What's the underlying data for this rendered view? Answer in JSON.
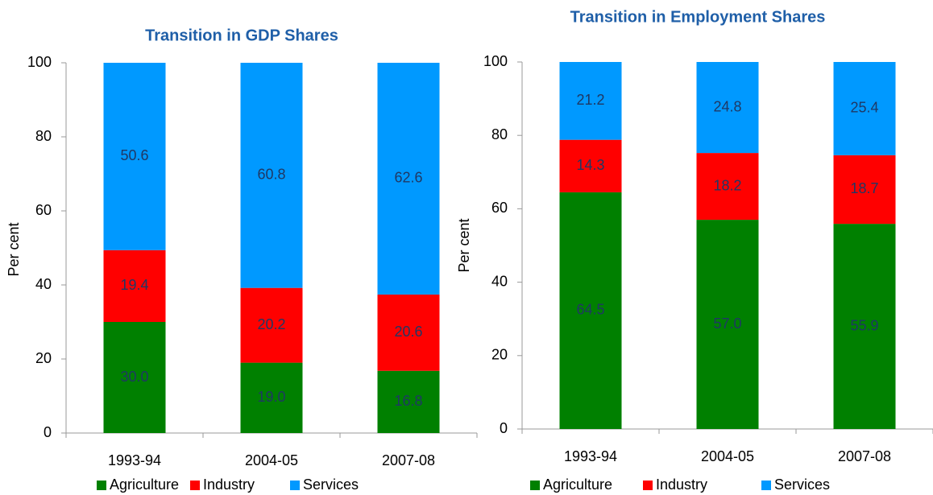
{
  "chart_data": [
    {
      "type": "stacked_bar",
      "title": "Transition in GDP Shares",
      "y_label": "Per cent",
      "categories": [
        "1993-94",
        "2004-05",
        "2007-08"
      ],
      "series": [
        {
          "name": "Agriculture",
          "color": "#008000",
          "values": [
            30.0,
            19.0,
            16.8
          ],
          "value_labels": [
            "30.0",
            "19.0",
            "16.8"
          ]
        },
        {
          "name": "Industry",
          "color": "#ff0000",
          "values": [
            19.4,
            20.2,
            20.6
          ],
          "value_labels": [
            "19.4",
            "20.2",
            "20.6"
          ]
        },
        {
          "name": "Services",
          "color": "#0099ff",
          "values": [
            50.6,
            60.8,
            62.6
          ],
          "value_labels": [
            "50.6",
            "60.8",
            "62.6"
          ]
        }
      ],
      "ylim": [
        0,
        100
      ],
      "yticks": [
        0,
        20,
        40,
        60,
        80,
        100
      ],
      "grid": false,
      "legend": "bottom"
    },
    {
      "type": "stacked_bar",
      "title": "Transition in Employment Shares",
      "y_label": "Per cent",
      "categories": [
        "1993-94",
        "2004-05",
        "2007-08"
      ],
      "series": [
        {
          "name": "Agriculture",
          "color": "#008000",
          "values": [
            64.5,
            57.0,
            55.9
          ],
          "value_labels": [
            "64.5",
            "57.0",
            "55.9"
          ]
        },
        {
          "name": "Industry",
          "color": "#ff0000",
          "values": [
            14.3,
            18.2,
            18.7
          ],
          "value_labels": [
            "14.3",
            "18.2",
            "18.7"
          ]
        },
        {
          "name": "Services",
          "color": "#0099ff",
          "values": [
            21.2,
            24.8,
            25.4
          ],
          "value_labels": [
            "21.2",
            "24.8",
            "25.4"
          ]
        }
      ],
      "ylim": [
        0,
        100
      ],
      "yticks": [
        0,
        20,
        40,
        60,
        80,
        100
      ],
      "grid": false,
      "legend": "bottom"
    }
  ]
}
